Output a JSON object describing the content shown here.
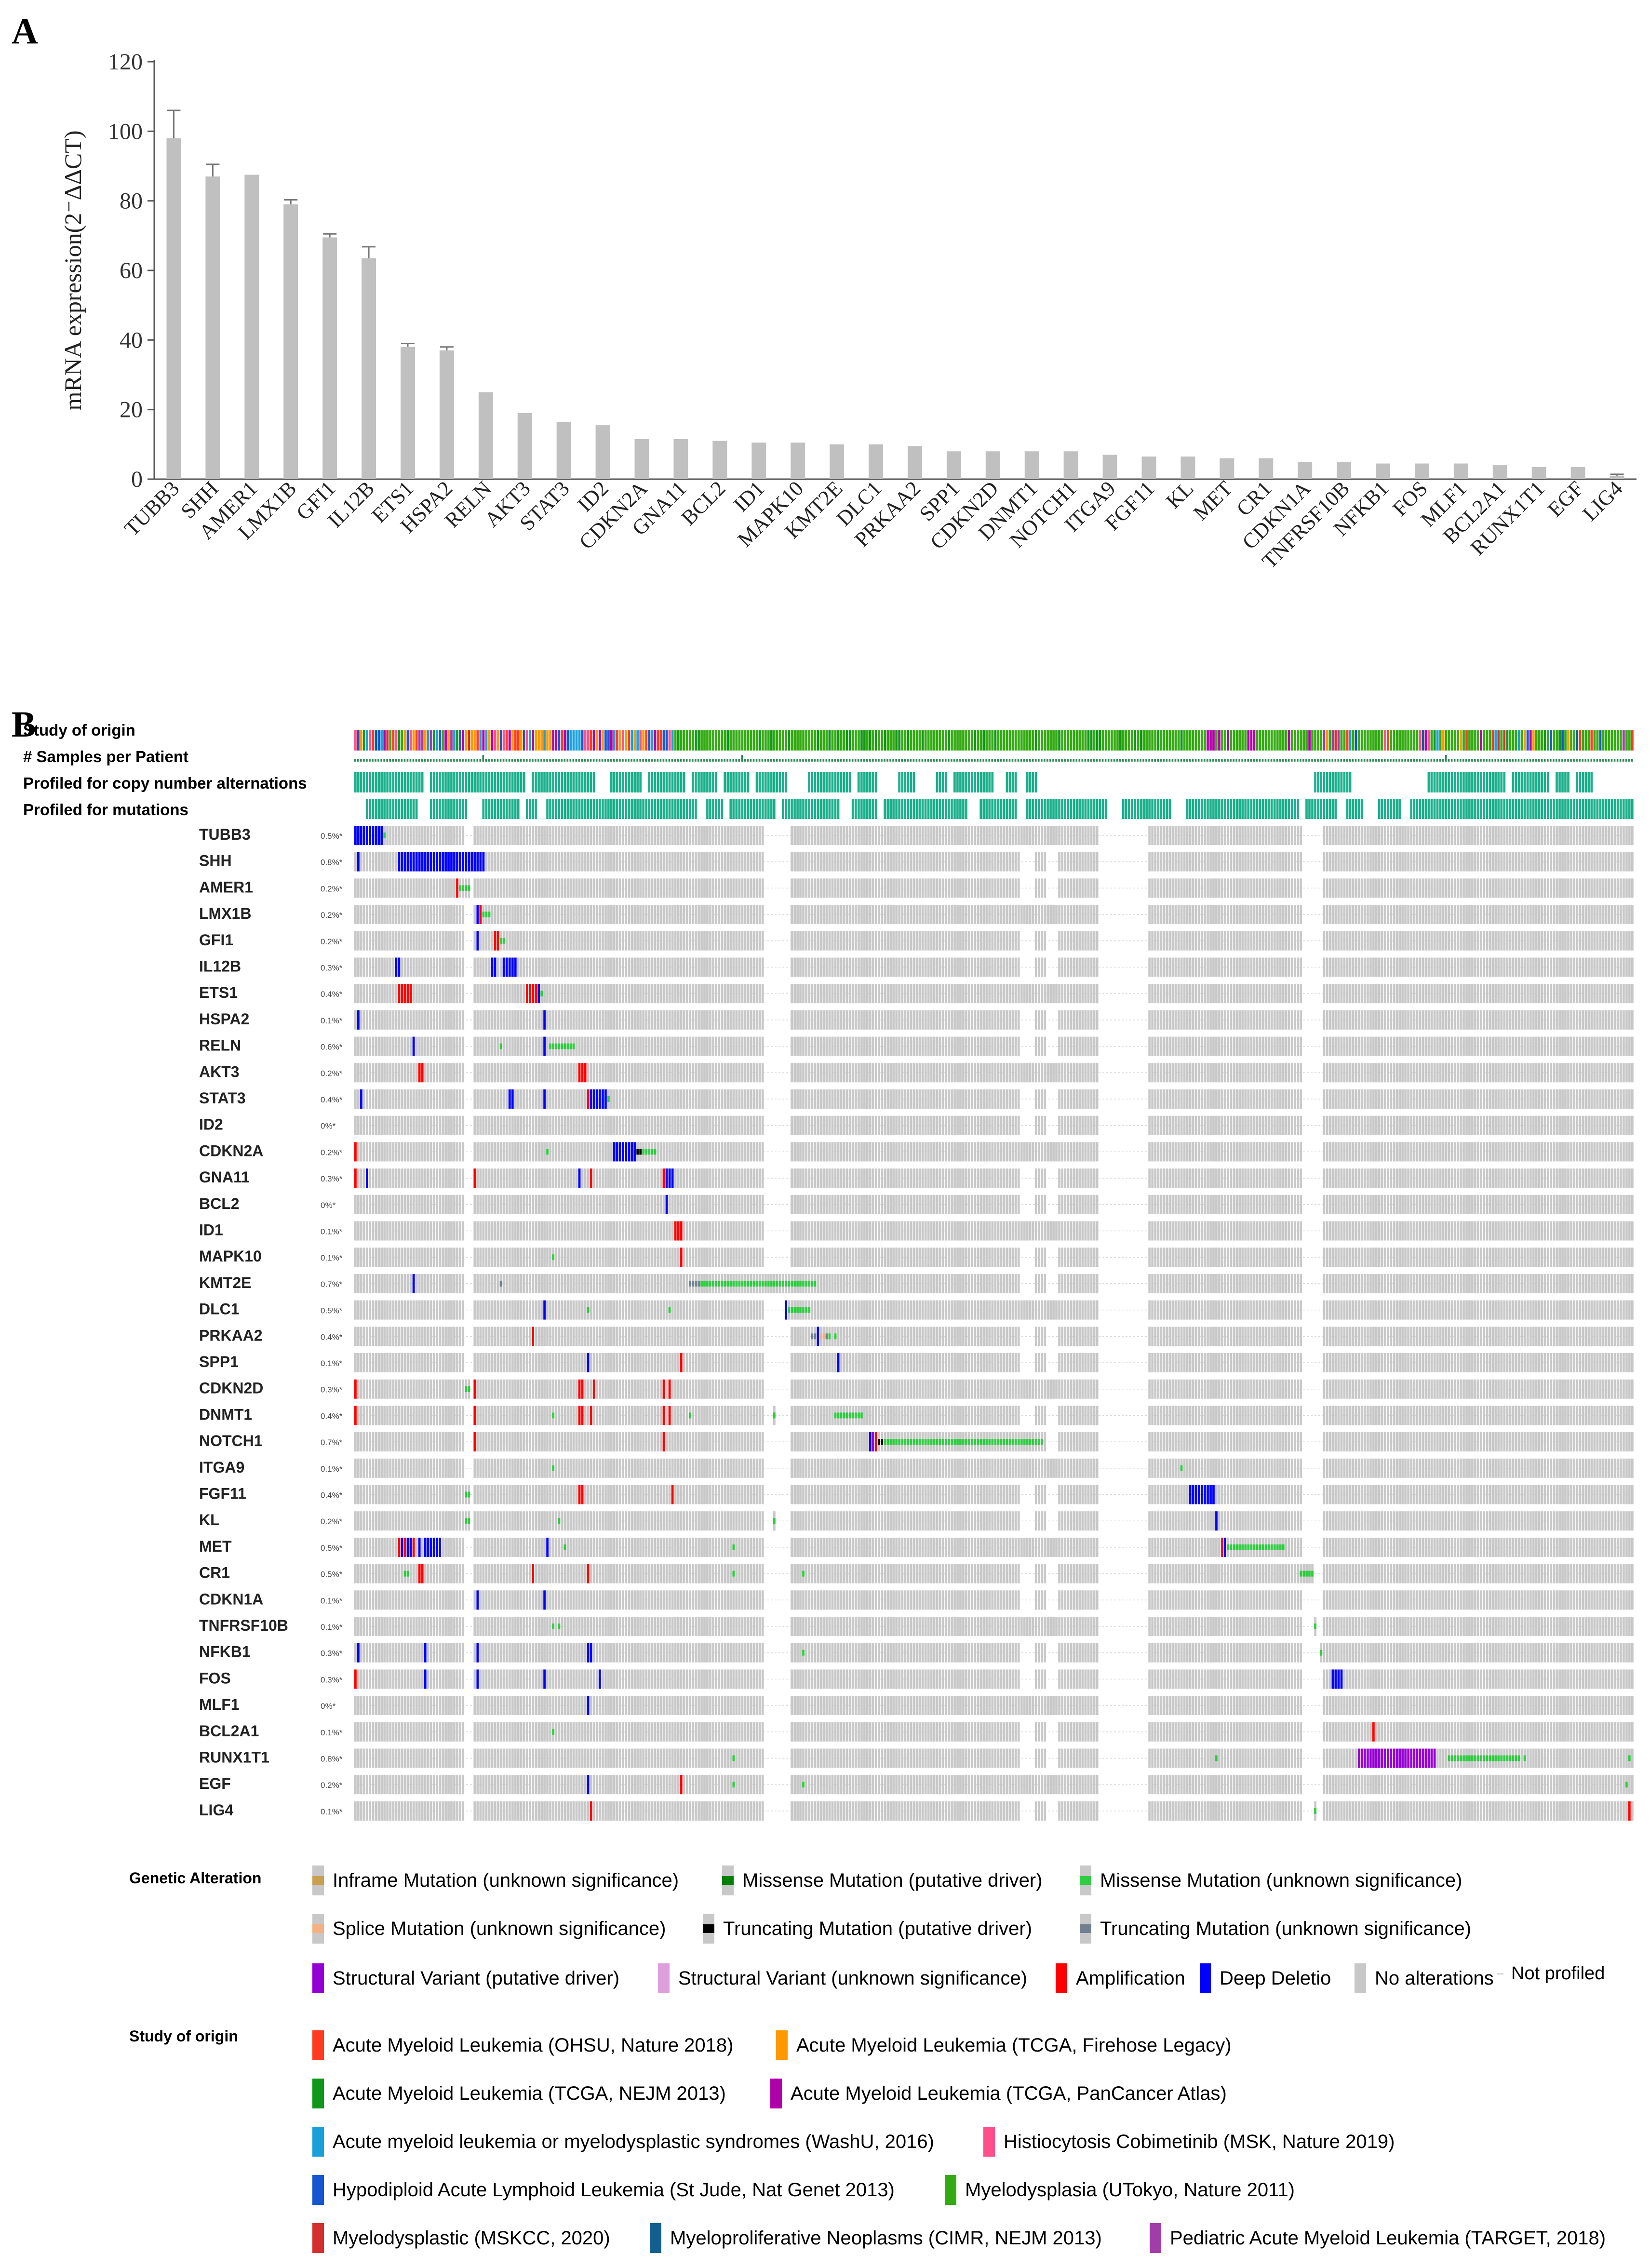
{
  "panel_a": {
    "letter": "A",
    "chart_data": {
      "type": "bar",
      "ylabel": "mRNA expression(2⁻ΔΔCT)",
      "ylim": [
        0,
        120
      ],
      "yticks": [
        0,
        20,
        40,
        60,
        80,
        100,
        120
      ],
      "bar_color": "#c0c0c0",
      "categories": [
        "TUBB3",
        "SHH",
        "AMER1",
        "LMX1B",
        "GFI1",
        "IL12B",
        "ETS1",
        "HSPA2",
        "RELN",
        "AKT3",
        "STAT3",
        "ID2",
        "CDKN2A",
        "GNA11",
        "BCL2",
        "ID1",
        "MAPK10",
        "KMT2E",
        "DLC1",
        "PRKAA2",
        "SPP1",
        "CDKN2D",
        "DNMT1",
        "NOTCH1",
        "ITGA9",
        "FGF11",
        "KL",
        "MET",
        "CR1",
        "CDKN1A",
        "TNFRSF10B",
        "NFKB1",
        "FOS",
        "MLF1",
        "BCL2A1",
        "RUNX1T1",
        "EGF",
        "LIG4"
      ],
      "values": [
        98,
        87,
        87.5,
        79,
        69.5,
        63.5,
        38,
        37,
        25,
        19,
        16.5,
        15.5,
        11.5,
        11.5,
        11,
        10.5,
        10.5,
        10,
        10,
        9.5,
        8,
        8,
        8,
        8,
        7,
        6.5,
        6.5,
        6,
        6,
        5,
        5,
        4.5,
        4.5,
        4.5,
        4,
        3.5,
        3.5,
        1
      ],
      "errors": [
        8,
        3.5,
        0,
        1.3,
        1,
        3.3,
        1,
        1,
        0,
        0,
        0,
        0,
        0,
        0,
        0,
        0,
        0,
        0,
        0,
        0,
        0,
        0,
        0,
        0,
        0,
        0,
        0,
        0,
        0,
        0,
        0,
        0,
        0,
        0,
        0,
        0,
        0,
        0.4
      ]
    }
  },
  "panel_b": {
    "letter": "B",
    "tracks": {
      "study": "Study of origin",
      "samples": "# Samples per Patient",
      "cna": "Profiled for copy number alternations",
      "mut": "Profiled for mutations"
    },
    "genes": [
      {
        "name": "TUBB3",
        "pct": "0.5%*"
      },
      {
        "name": "SHH",
        "pct": "0.8%*"
      },
      {
        "name": "AMER1",
        "pct": "0.2%*"
      },
      {
        "name": "LMX1B",
        "pct": "0.2%*"
      },
      {
        "name": "GFI1",
        "pct": "0.2%*"
      },
      {
        "name": "IL12B",
        "pct": "0.3%*"
      },
      {
        "name": "ETS1",
        "pct": "0.4%*"
      },
      {
        "name": "HSPA2",
        "pct": "0.1%*"
      },
      {
        "name": "RELN",
        "pct": "0.6%*"
      },
      {
        "name": "AKT3",
        "pct": "0.2%*"
      },
      {
        "name": "STAT3",
        "pct": "0.4%*"
      },
      {
        "name": "ID2",
        "pct": "0%*"
      },
      {
        "name": "CDKN2A",
        "pct": "0.2%*"
      },
      {
        "name": "GNA11",
        "pct": "0.3%*"
      },
      {
        "name": "BCL2",
        "pct": "0%*"
      },
      {
        "name": "ID1",
        "pct": "0.1%*"
      },
      {
        "name": "MAPK10",
        "pct": "0.1%*"
      },
      {
        "name": "KMT2E",
        "pct": "0.7%*"
      },
      {
        "name": "DLC1",
        "pct": "0.5%*"
      },
      {
        "name": "PRKAA2",
        "pct": "0.4%*"
      },
      {
        "name": "SPP1",
        "pct": "0.1%*"
      },
      {
        "name": "CDKN2D",
        "pct": "0.3%*"
      },
      {
        "name": "DNMT1",
        "pct": "0.4%*"
      },
      {
        "name": "NOTCH1",
        "pct": "0.7%*"
      },
      {
        "name": "ITGA9",
        "pct": "0.1%*"
      },
      {
        "name": "FGF11",
        "pct": "0.4%*"
      },
      {
        "name": "KL",
        "pct": "0.2%*"
      },
      {
        "name": "MET",
        "pct": "0.5%*"
      },
      {
        "name": "CR1",
        "pct": "0.5%*"
      },
      {
        "name": "CDKN1A",
        "pct": "0.1%*"
      },
      {
        "name": "TNFRSF10B",
        "pct": "0.1%*"
      },
      {
        "name": "NFKB1",
        "pct": "0.3%*"
      },
      {
        "name": "FOS",
        "pct": "0.3%*"
      },
      {
        "name": "MLF1",
        "pct": "0%*"
      },
      {
        "name": "BCL2A1",
        "pct": "0.1%*"
      },
      {
        "name": "RUNX1T1",
        "pct": "0.8%*"
      },
      {
        "name": "EGF",
        "pct": "0.2%*"
      },
      {
        "name": "LIG4",
        "pct": "0.1%*"
      }
    ],
    "colors": {
      "no_alt": "#c8c8c8",
      "amp": "#ff0000",
      "del": "#0000ff",
      "missense_vus": "#2ecc40",
      "missense_driver": "#008000",
      "truncating_driver": "#000000",
      "truncating_vus": "#708090",
      "splice_vus": "#f4b183",
      "inframe": "#a0522d",
      "sv_driver": "#9400d3",
      "sv_vus": "#dda0dd",
      "profiled": "#1aaf8b",
      "samples": "#2e8b57"
    },
    "legend_alteration": {
      "title": "Genetic Alteration",
      "items": [
        {
          "label": "Inframe Mutation (unknown significance)",
          "color": "#c8a050",
          "type": "dot"
        },
        {
          "label": "Missense Mutation (putative driver)",
          "color": "#008000",
          "type": "dot"
        },
        {
          "label": "Missense Mutation (unknown significance)",
          "color": "#2ecc40",
          "type": "dot"
        },
        {
          "label": "Splice Mutation (unknown significance)",
          "color": "#f4b183",
          "type": "dot"
        },
        {
          "label": "Truncating Mutation (putative driver)",
          "color": "#000000",
          "type": "dot"
        },
        {
          "label": "Truncating Mutation (unknown significance)",
          "color": "#708090",
          "type": "dot"
        },
        {
          "label": "Structural Variant (putative driver)",
          "color": "#9400d3",
          "type": "full"
        },
        {
          "label": "Structural Variant (unknown significance)",
          "color": "#dda0dd",
          "type": "full"
        },
        {
          "label": "Amplification",
          "color": "#ff0000",
          "type": "full"
        },
        {
          "label": "Deep Deletio",
          "color": "#0000ff",
          "type": "full"
        },
        {
          "label": "No alterations",
          "color": "#c8c8c8",
          "type": "full"
        },
        {
          "label": "Not profiled",
          "color": "#ffffff",
          "type": "np"
        }
      ]
    },
    "legend_study": {
      "title": "Study of origin",
      "items": [
        {
          "label": "Acute Myeloid Leukemia (OHSU, Nature 2018)",
          "color": "#ff3b1f"
        },
        {
          "label": "Acute Myeloid Leukemia (TCGA, Firehose Legacy)",
          "color": "#ff9900"
        },
        {
          "label": "Acute Myeloid Leukemia (TCGA, NEJM 2013)",
          "color": "#109618"
        },
        {
          "label": "Acute Myeloid Leukemia (TCGA, PanCancer Atlas)",
          "color": "#b000a8"
        },
        {
          "label": "Acute myeloid leukemia or myelodysplastic syndromes (WashU, 2016)",
          "color": "#1aa0d8"
        },
        {
          "label": "Histiocytosis Cobimetinib (MSK, Nature 2019)",
          "color": "#ff4f8a"
        },
        {
          "label": "Hypodiploid Acute Lymphoid Leukemia (St Jude, Nat Genet 2013)",
          "color": "#1656d0"
        },
        {
          "label": "Myelodysplasia (UTokyo, Nature 2011)",
          "color": "#33aa11"
        },
        {
          "label": "Myelodysplastic (MSKCC, 2020)",
          "color": "#d42f2f"
        },
        {
          "label": "Myeloproliferative Neoplasms (CIMR, NEJM 2013)",
          "color": "#125e8f"
        },
        {
          "label": "Pediatric Acute Myeloid Leukemia (TARGET, 2018)",
          "color": "#a13ca8"
        }
      ]
    }
  }
}
